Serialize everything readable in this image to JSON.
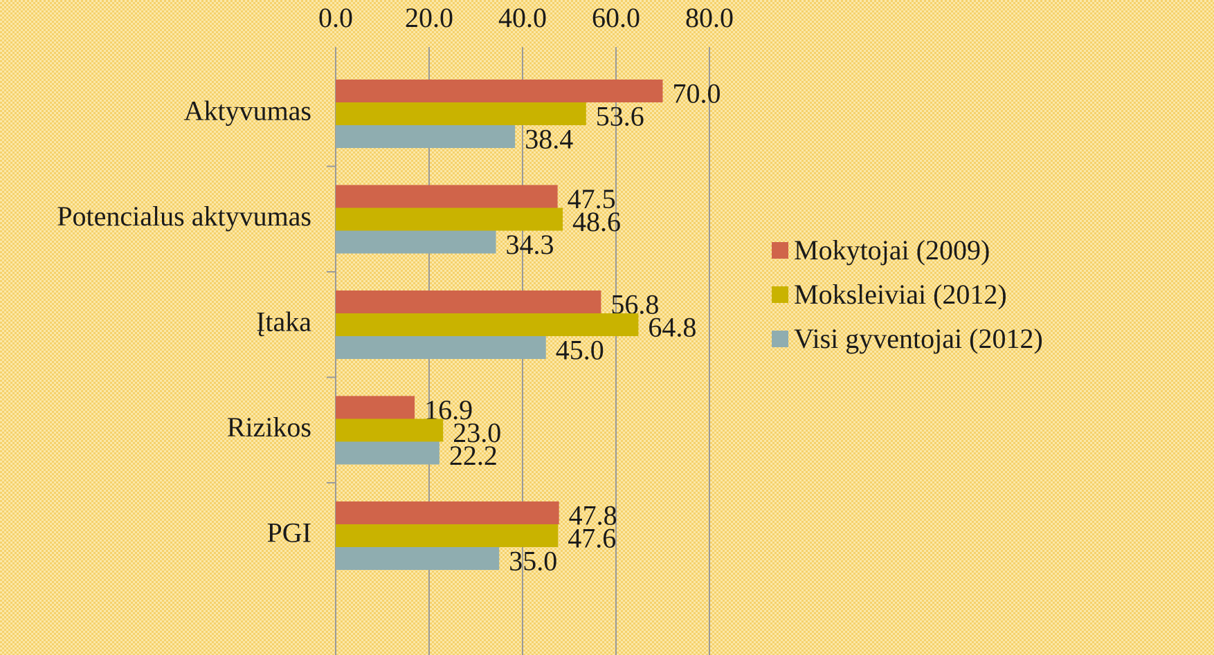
{
  "chart_data": {
    "type": "bar",
    "orientation": "horizontal",
    "categories": [
      "Aktyvumas",
      "Potencialus aktyvumas",
      "Įtaka",
      "Rizikos",
      "PGI"
    ],
    "series": [
      {
        "name": "Mokytojai (2009)",
        "color": "#d0644a",
        "values": [
          70.0,
          47.5,
          56.8,
          16.9,
          47.8
        ],
        "value_labels": [
          "70.0",
          "47.5",
          "56.8",
          "16.9",
          "47.8"
        ]
      },
      {
        "name": "Moksleiviai (2012)",
        "color": "#c9b300",
        "values": [
          53.6,
          48.6,
          64.8,
          23.0,
          47.6
        ],
        "value_labels": [
          "53.6",
          "48.6",
          "64.8",
          "23.0",
          "47.6"
        ]
      },
      {
        "name": "Visi gyventojai (2012)",
        "color": "#8fadb0",
        "values": [
          38.4,
          34.3,
          45.0,
          22.2,
          35.0
        ],
        "value_labels": [
          "38.4",
          "34.3",
          "45.0",
          "22.2",
          "35.0"
        ]
      }
    ],
    "xlim": [
      0,
      80
    ],
    "xticks": [
      {
        "value": 0,
        "label": "0.0"
      },
      {
        "value": 20,
        "label": "20.0"
      },
      {
        "value": 40,
        "label": "40.0"
      },
      {
        "value": 60,
        "label": "60.0"
      },
      {
        "value": 80,
        "label": "80.0"
      }
    ],
    "grid": true,
    "legend": "right"
  }
}
